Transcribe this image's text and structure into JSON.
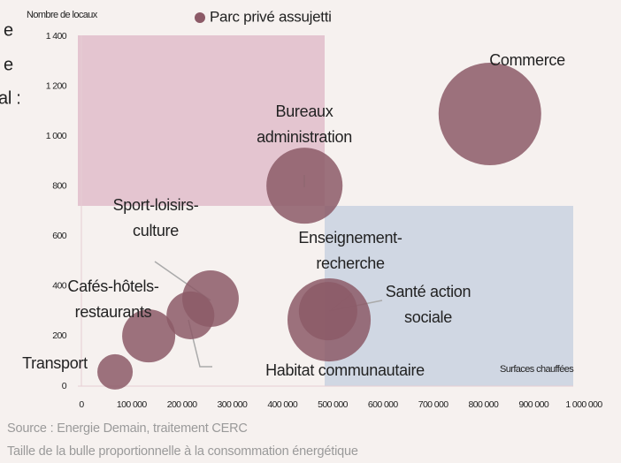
{
  "clipped_text": [
    "e",
    "e",
    "al :"
  ],
  "chart_data": {
    "type": "bubble",
    "y_label": "Nombre de locaux",
    "x_label": "Surfaces chauffées",
    "xlim": [
      0,
      1000000
    ],
    "ylim": [
      0,
      1400
    ],
    "xticks": [
      0,
      {
        "value": 100000,
        "label": "100 000"
      },
      {
        "value": 200000,
        "label": "200 000"
      },
      {
        "value": 300000,
        "label": "300 000"
      },
      {
        "value": 400000,
        "label": "400 000"
      },
      {
        "value": 500000,
        "label": "500 000"
      },
      {
        "value": 600000,
        "label": "600 000"
      },
      {
        "value": 700000,
        "label": "700 000"
      },
      {
        "value": 800000,
        "label": "800 000"
      },
      {
        "value": 900000,
        "label": "900 000"
      },
      {
        "value": 1000000,
        "label": "1 000 000"
      }
    ],
    "yticks": [
      0,
      200,
      400,
      600,
      800,
      {
        "value": 1000,
        "label": "1 000"
      },
      {
        "value": 1200,
        "label": "1 200"
      },
      {
        "value": 1400,
        "label": "1 400"
      }
    ],
    "labels": [
      [
        "Transport"
      ],
      [
        "Cafés-hôtels-",
        "restaurants"
      ],
      [
        "Sport-loisirs-",
        "culture"
      ],
      [
        "Habitat communautaire"
      ],
      [
        "Bureaux",
        "administration"
      ],
      [
        "Enseignement-",
        "recherche"
      ],
      [
        "Santé action",
        "sociale"
      ],
      [
        "Commerce"
      ]
    ],
    "series": [
      {
        "name": "Parc privé assujetti",
        "color": "#8c5a67",
        "x": [
          67000,
          134000,
          257000,
          217000,
          444000,
          493000,
          491000,
          813000
        ],
        "values": [
          57,
          201,
          350,
          283,
          802,
          265,
          300,
          1089
        ],
        "sizes": [
          40,
          90,
          102,
          73,
          185,
          221,
          109,
          336
        ]
      }
    ],
    "legend": "top",
    "source": "Source : Energie Demain, traitement CERC",
    "note": "Taille de la bulle proportionnelle à la consommation énergétique"
  }
}
